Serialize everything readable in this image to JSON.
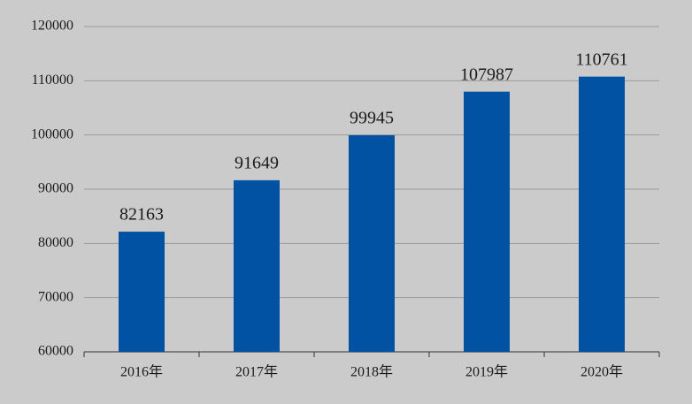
{
  "chart_data": {
    "type": "bar",
    "categories": [
      "2016年",
      "2017年",
      "2018年",
      "2019年",
      "2020年"
    ],
    "values": [
      82163,
      91649,
      99945,
      107987,
      110761
    ],
    "color": "#0152a2",
    "ylim": [
      60000,
      120000
    ],
    "yticks": [
      60000,
      70000,
      80000,
      90000,
      100000,
      110000,
      120000
    ],
    "grid": true
  }
}
